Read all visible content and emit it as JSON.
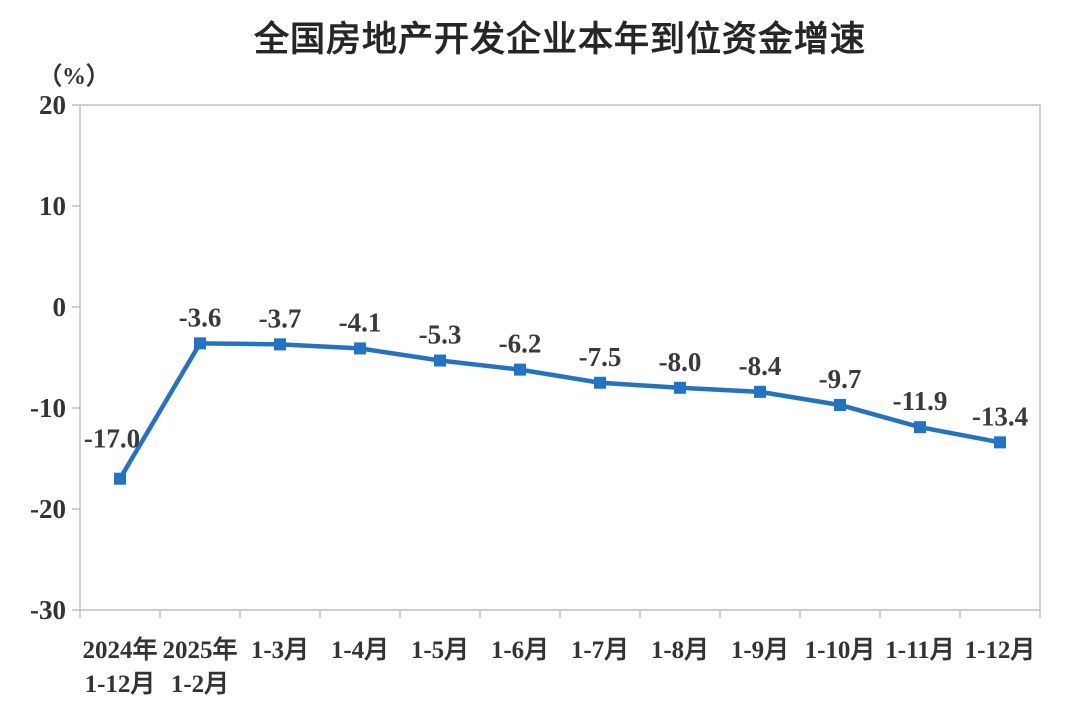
{
  "window": {
    "background": "#ffffff"
  },
  "chart_data": {
    "type": "line",
    "title": "全国房地产开发企业本年到位资金增速",
    "unit_label": "（%）",
    "categories": [
      "2024年\n1-12月",
      "2025年\n1-2月",
      "1-3月",
      "1-4月",
      "1-5月",
      "1-6月",
      "1-7月",
      "1-8月",
      "1-9月",
      "1-10月",
      "1-11月",
      "1-12月"
    ],
    "values": [
      -17.0,
      -3.6,
      -3.7,
      -4.1,
      -5.3,
      -6.2,
      -7.5,
      -8.0,
      -8.4,
      -9.7,
      -11.9,
      -13.4
    ],
    "data_labels": [
      "-17.0",
      "-3.6",
      "-3.7",
      "-4.1",
      "-5.3",
      "-6.2",
      "-7.5",
      "-8.0",
      "-8.4",
      "-9.7",
      "-11.9",
      "-13.4"
    ],
    "y_ticks": [
      20,
      10,
      0,
      -10,
      -20,
      -30
    ],
    "y_tick_labels": [
      "20",
      "10",
      "0",
      "-10",
      "-20",
      "-30"
    ],
    "ylim": [
      -30,
      20
    ],
    "grid": false,
    "legend_position": "none",
    "marker": "square",
    "colors": {
      "line": "#2272C6",
      "marker": "#2272C6",
      "axis": "#C0C0C0",
      "tick_label": "#333333",
      "data_label": "#3A3A3A",
      "title": "#262626"
    }
  }
}
